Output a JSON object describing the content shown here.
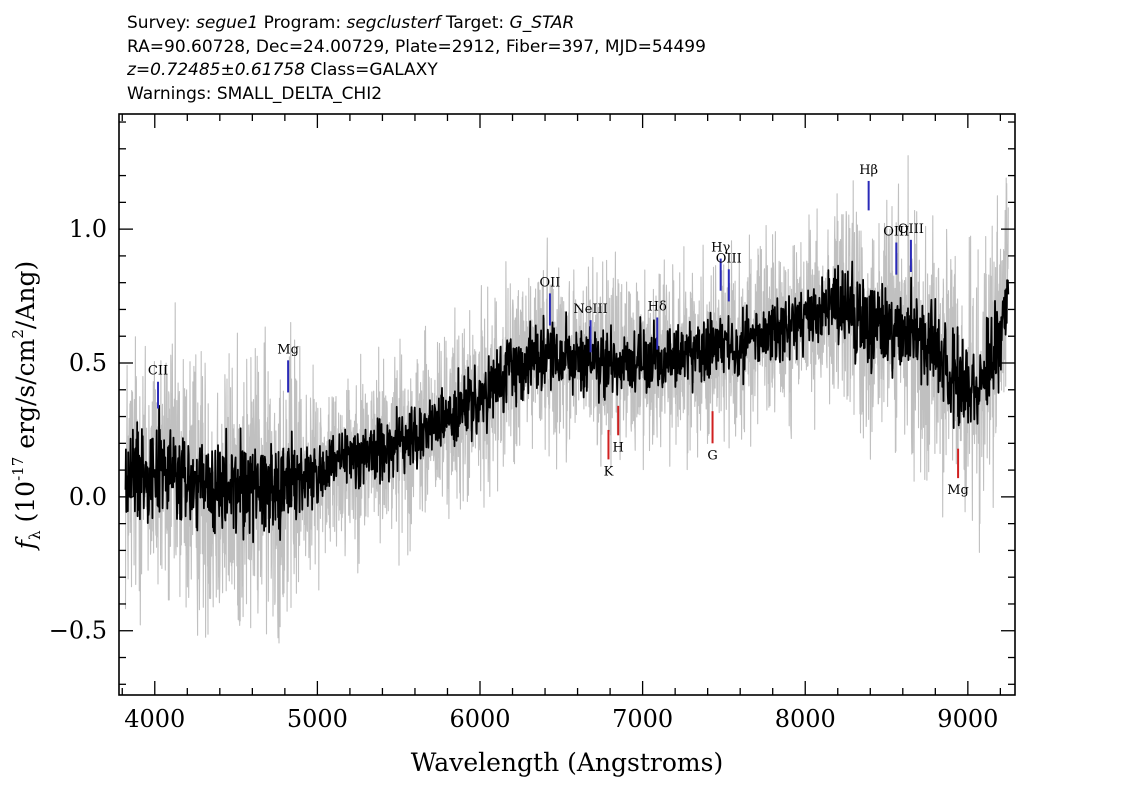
{
  "header": {
    "survey_label": "Survey:",
    "survey": "segue1",
    "program_label": "Program:",
    "program": "segclusterf",
    "target_label": "Target:",
    "target": "G_STAR",
    "line2": "RA=90.60728, Dec=24.00729, Plate=2912, Fiber=397, MJD=54499",
    "redshift": "z=0.72485±0.61758",
    "class_text": "Class=GALAXY",
    "warnings": "Warnings: SMALL_DELTA_CHI2"
  },
  "chart_data": {
    "type": "line",
    "xlabel": "Wavelength (Angstroms)",
    "ylabel_prefix": "f",
    "ylabel_sub": "λ",
    "ylabel_units": "(10",
    "ylabel_exp": "-17",
    "ylabel_rest": "erg/s/cm",
    "ylabel_exp2": "2",
    "ylabel_tail": "/Ang)",
    "xlim": [
      3780,
      9290
    ],
    "ylim": [
      -0.74,
      1.43
    ],
    "xticks": [
      4000,
      5000,
      6000,
      7000,
      8000,
      9000
    ],
    "xtick_labels": [
      "4000",
      "5000",
      "6000",
      "7000",
      "8000",
      "9000"
    ],
    "yticks": [
      -0.5,
      0.0,
      0.5,
      1.0
    ],
    "ytick_labels": [
      "−0.5",
      "0.0",
      "0.5",
      "1.0"
    ],
    "series": [
      {
        "role": "noisy flux (grey)",
        "color": "#c0c0c0",
        "x": [
          3820,
          3900,
          4000,
          4200,
          4400,
          4600,
          4800,
          5000,
          5200,
          5400,
          5600,
          5800,
          6000,
          6200,
          6400,
          6600,
          6800,
          7000,
          7200,
          7400,
          7600,
          7800,
          8000,
          8200,
          8400,
          8600,
          8800,
          9000,
          9100,
          9200,
          9250
        ],
        "y": [
          0.05,
          0.1,
          0.1,
          0.05,
          0.0,
          0.03,
          0.05,
          0.08,
          0.15,
          0.18,
          0.22,
          0.28,
          0.35,
          0.48,
          0.55,
          0.52,
          0.5,
          0.5,
          0.52,
          0.55,
          0.58,
          0.62,
          0.65,
          0.7,
          0.65,
          0.62,
          0.55,
          0.4,
          0.45,
          0.6,
          0.8
        ]
      },
      {
        "role": "smoothed flux (black)",
        "color": "#000000",
        "x": [
          3820,
          3900,
          4000,
          4200,
          4400,
          4600,
          4800,
          5000,
          5200,
          5400,
          5600,
          5800,
          6000,
          6200,
          6400,
          6600,
          6800,
          7000,
          7200,
          7400,
          7600,
          7800,
          8000,
          8200,
          8400,
          8600,
          8800,
          9000,
          9100,
          9200,
          9250
        ],
        "y": [
          0.05,
          0.1,
          0.12,
          0.05,
          0.02,
          0.05,
          0.05,
          0.08,
          0.15,
          0.18,
          0.22,
          0.3,
          0.35,
          0.48,
          0.55,
          0.5,
          0.5,
          0.5,
          0.52,
          0.55,
          0.58,
          0.62,
          0.65,
          0.72,
          0.65,
          0.62,
          0.55,
          0.4,
          0.45,
          0.6,
          0.85
        ]
      }
    ],
    "emission_lines": [
      {
        "label": "CII",
        "x": 4020,
        "y0": 0.33,
        "y1": 0.43,
        "color": "#2a2ab8"
      },
      {
        "label": "Mg",
        "x": 4820,
        "y0": 0.39,
        "y1": 0.51,
        "color": "#2a2ab8"
      },
      {
        "label": "OII",
        "x": 6430,
        "y0": 0.64,
        "y1": 0.76,
        "color": "#2a2ab8"
      },
      {
        "label": "NeIII",
        "x": 6680,
        "y0": 0.54,
        "y1": 0.66,
        "color": "#2a2ab8"
      },
      {
        "label": "Hδ",
        "x": 7090,
        "y0": 0.55,
        "y1": 0.67,
        "color": "#2a2ab8"
      },
      {
        "label": "Hγ",
        "x": 7480,
        "y0": 0.77,
        "y1": 0.89,
        "color": "#2a2ab8"
      },
      {
        "label": "OIII",
        "x": 7530,
        "y0": 0.73,
        "y1": 0.85,
        "color": "#2a2ab8"
      },
      {
        "label": "Hβ",
        "x": 8390,
        "y0": 1.07,
        "y1": 1.18,
        "color": "#2a2ab8"
      },
      {
        "label": "OIII",
        "x": 8560,
        "y0": 0.83,
        "y1": 0.95,
        "color": "#2a2ab8"
      },
      {
        "label": "OIII",
        "x": 8650,
        "y0": 0.84,
        "y1": 0.96,
        "color": "#2a2ab8"
      }
    ],
    "absorption_lines": [
      {
        "label": "K",
        "x": 6790,
        "y0": 0.25,
        "y1": 0.14,
        "color": "#d02020"
      },
      {
        "label": "H",
        "x": 6850,
        "y0": 0.34,
        "y1": 0.23,
        "color": "#d02020"
      },
      {
        "label": "G",
        "x": 7430,
        "y0": 0.32,
        "y1": 0.2,
        "color": "#d02020"
      },
      {
        "label": "Mg",
        "x": 8940,
        "y0": 0.18,
        "y1": 0.07,
        "color": "#d02020"
      }
    ],
    "grid": false,
    "legend": "none"
  }
}
